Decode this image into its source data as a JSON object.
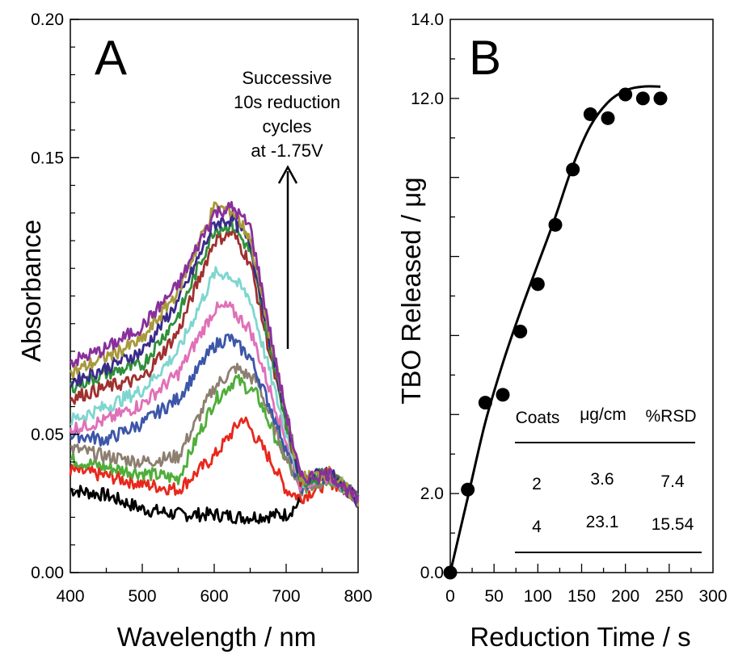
{
  "chart_data": [
    {
      "type": "line",
      "panel_label": "A",
      "xlabel": "Wavelength / nm",
      "ylabel": "Absorbance",
      "xlim": [
        400,
        800
      ],
      "ylim": [
        0.0,
        0.2
      ],
      "xticks": [
        "400",
        "500",
        "600",
        "700",
        "800"
      ],
      "yticks": [
        "0.00",
        "0.05",
        "0.15",
        "0.20"
      ],
      "annotation": [
        "Successive",
        "10s reduction",
        "cycles",
        "at -1.75V"
      ],
      "series": [
        {
          "color": "#000000",
          "points": [
            [
              400,
              0.03
            ],
            [
              450,
              0.028
            ],
            [
              500,
              0.023
            ],
            [
              550,
              0.021
            ],
            [
              600,
              0.021
            ],
            [
              640,
              0.02
            ],
            [
              700,
              0.021
            ],
            [
              722,
              0.026
            ]
          ]
        },
        {
          "color": "#e8281c",
          "points": [
            [
              400,
              0.037
            ],
            [
              450,
              0.035
            ],
            [
              500,
              0.032
            ],
            [
              550,
              0.03
            ],
            [
              600,
              0.042
            ],
            [
              640,
              0.056
            ],
            [
              680,
              0.04
            ],
            [
              700,
              0.03
            ],
            [
              720,
              0.027
            ],
            [
              760,
              0.033
            ],
            [
              800,
              0.028
            ]
          ]
        },
        {
          "color": "#4fae3a",
          "points": [
            [
              400,
              0.041
            ],
            [
              450,
              0.038
            ],
            [
              500,
              0.036
            ],
            [
              550,
              0.034
            ],
            [
              600,
              0.062
            ],
            [
              630,
              0.07
            ],
            [
              660,
              0.064
            ],
            [
              690,
              0.046
            ],
            [
              720,
              0.03
            ],
            [
              760,
              0.034
            ],
            [
              800,
              0.028
            ]
          ]
        },
        {
          "color": "#8d7f70",
          "points": [
            [
              400,
              0.045
            ],
            [
              450,
              0.042
            ],
            [
              500,
              0.04
            ],
            [
              550,
              0.042
            ],
            [
              600,
              0.067
            ],
            [
              630,
              0.074
            ],
            [
              660,
              0.069
            ],
            [
              690,
              0.048
            ],
            [
              720,
              0.03
            ],
            [
              760,
              0.034
            ],
            [
              800,
              0.027
            ]
          ]
        },
        {
          "color": "#3c56a8",
          "points": [
            [
              400,
              0.05
            ],
            [
              450,
              0.048
            ],
            [
              500,
              0.054
            ],
            [
              550,
              0.063
            ],
            [
              600,
              0.082
            ],
            [
              620,
              0.085
            ],
            [
              650,
              0.078
            ],
            [
              690,
              0.052
            ],
            [
              720,
              0.031
            ],
            [
              760,
              0.035
            ],
            [
              800,
              0.027
            ]
          ]
        },
        {
          "color": "#e070b8",
          "points": [
            [
              400,
              0.052
            ],
            [
              450,
              0.055
            ],
            [
              500,
              0.061
            ],
            [
              550,
              0.072
            ],
            [
              600,
              0.095
            ],
            [
              620,
              0.096
            ],
            [
              650,
              0.088
            ],
            [
              690,
              0.056
            ],
            [
              720,
              0.032
            ],
            [
              760,
              0.035
            ],
            [
              800,
              0.027
            ]
          ]
        },
        {
          "color": "#7fd6d0",
          "points": [
            [
              400,
              0.055
            ],
            [
              450,
              0.06
            ],
            [
              500,
              0.066
            ],
            [
              550,
              0.08
            ],
            [
              600,
              0.108
            ],
            [
              620,
              0.108
            ],
            [
              650,
              0.099
            ],
            [
              690,
              0.06
            ],
            [
              720,
              0.033
            ],
            [
              760,
              0.036
            ],
            [
              800,
              0.027
            ]
          ]
        },
        {
          "color": "#a03030",
          "points": [
            [
              400,
              0.063
            ],
            [
              450,
              0.067
            ],
            [
              500,
              0.07
            ],
            [
              550,
              0.087
            ],
            [
              600,
              0.12
            ],
            [
              625,
              0.123
            ],
            [
              650,
              0.112
            ],
            [
              690,
              0.064
            ],
            [
              720,
              0.033
            ],
            [
              760,
              0.036
            ],
            [
              800,
              0.026
            ]
          ]
        },
        {
          "color": "#2f8f3a",
          "points": [
            [
              400,
              0.067
            ],
            [
              450,
              0.072
            ],
            [
              500,
              0.075
            ],
            [
              550,
              0.093
            ],
            [
              600,
              0.124
            ],
            [
              625,
              0.126
            ],
            [
              650,
              0.116
            ],
            [
              690,
              0.066
            ],
            [
              720,
              0.033
            ],
            [
              760,
              0.036
            ],
            [
              800,
              0.026
            ]
          ]
        },
        {
          "color": "#3a2a8a",
          "points": [
            [
              400,
              0.069
            ],
            [
              450,
              0.074
            ],
            [
              500,
              0.08
            ],
            [
              550,
              0.098
            ],
            [
              600,
              0.126
            ],
            [
              625,
              0.128
            ],
            [
              650,
              0.119
            ],
            [
              690,
              0.068
            ],
            [
              720,
              0.034
            ],
            [
              760,
              0.036
            ],
            [
              800,
              0.026
            ]
          ]
        },
        {
          "color": "#a89a3a",
          "points": [
            [
              400,
              0.072
            ],
            [
              450,
              0.078
            ],
            [
              500,
              0.084
            ],
            [
              550,
              0.102
            ],
            [
              600,
              0.132
            ],
            [
              625,
              0.131
            ],
            [
              650,
              0.121
            ],
            [
              690,
              0.069
            ],
            [
              720,
              0.034
            ],
            [
              760,
              0.036
            ],
            [
              800,
              0.026
            ]
          ]
        },
        {
          "color": "#8a2f9c",
          "points": [
            [
              400,
              0.076
            ],
            [
              450,
              0.081
            ],
            [
              500,
              0.089
            ],
            [
              550,
              0.104
            ],
            [
              600,
              0.13
            ],
            [
              625,
              0.132
            ],
            [
              650,
              0.125
            ],
            [
              690,
              0.07
            ],
            [
              720,
              0.034
            ],
            [
              760,
              0.036
            ],
            [
              800,
              0.026
            ]
          ]
        }
      ]
    },
    {
      "type": "scatter",
      "panel_label": "B",
      "xlabel": "Reduction Time / s",
      "ylabel": "TBO Released / μg",
      "xlim": [
        0,
        300
      ],
      "ylim": [
        0.0,
        14.0
      ],
      "xticks": [
        "0",
        "50",
        "100",
        "150",
        "200",
        "250",
        "300"
      ],
      "yticks": [
        "0.0",
        "2.0",
        "12.0",
        "14.0"
      ],
      "points": {
        "x": [
          0,
          20,
          40,
          60,
          80,
          100,
          120,
          140,
          160,
          180,
          200,
          220,
          240
        ],
        "y": [
          0.0,
          2.1,
          4.3,
          4.5,
          6.1,
          7.3,
          8.8,
          10.2,
          11.6,
          11.5,
          12.1,
          12.0,
          12.0
        ]
      },
      "fit_curve": {
        "x": [
          0,
          20,
          40,
          60,
          80,
          100,
          120,
          140,
          160,
          180,
          200,
          220,
          240
        ],
        "y": [
          0.0,
          1.9,
          3.8,
          5.3,
          6.6,
          7.8,
          9.0,
          10.3,
          11.3,
          11.9,
          12.2,
          12.3,
          12.3
        ]
      },
      "table": {
        "headers": [
          "Coats",
          "μg/cm",
          "%RSD"
        ],
        "rows": [
          [
            "2",
            "3.6",
            "7.4"
          ],
          [
            "4",
            "23.1",
            "15.54"
          ]
        ]
      }
    }
  ]
}
